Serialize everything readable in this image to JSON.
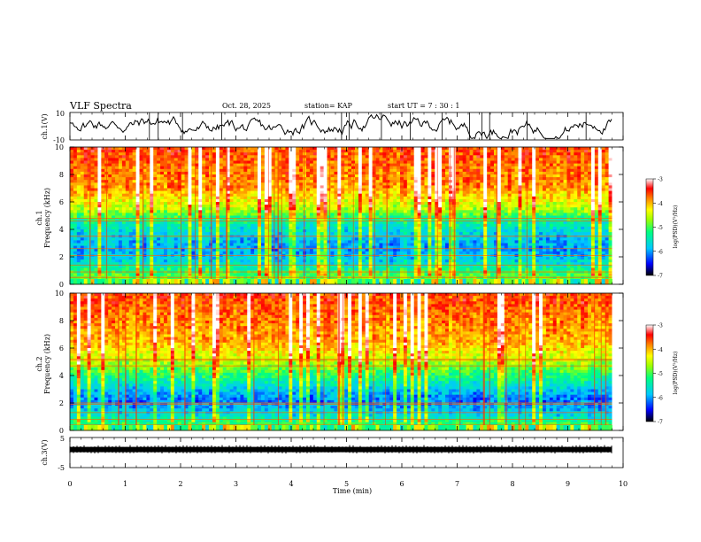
{
  "header": {
    "title": "VLF Spectra",
    "date": "Oct. 28, 2025",
    "station": "station= KAP",
    "start": "start  UT  =   7 : 30 : 1"
  },
  "chart_data": [
    {
      "type": "line",
      "name": "ch1-waveform",
      "ylabel": "ch.1(V)",
      "ylim": [
        -10,
        10
      ],
      "tick_labels": [
        "10",
        "-10"
      ],
      "x_range_min": [
        0,
        9.8
      ]
    },
    {
      "type": "heatmap",
      "name": "ch1-spectrogram",
      "ylabel": "ch.1",
      "ylabel2": "Frequency (kHz)",
      "ylim_khz": [
        0,
        10
      ],
      "y_ticks": [
        "0",
        "2",
        "4",
        "6",
        "8",
        "10"
      ],
      "colorbar": {
        "label": "log(PSD)(V²/Hz)",
        "range": [
          -7,
          -3
        ],
        "ticks": [
          "-3",
          "-4",
          "-5",
          "-6",
          "-7"
        ],
        "colors": [
          "#000000",
          "#0000ff",
          "#00c0ff",
          "#00ff80",
          "#80ff00",
          "#ffff00",
          "#ff8000",
          "#ff0000",
          "#ffffff"
        ]
      },
      "band_profile_khz_to_level": [
        [
          0,
          0.55
        ],
        [
          0.8,
          0.5
        ],
        [
          1.5,
          0.35
        ],
        [
          2.5,
          0.25
        ],
        [
          3.5,
          0.3
        ],
        [
          4.5,
          0.4
        ],
        [
          5.5,
          0.6
        ],
        [
          7,
          0.78
        ],
        [
          10,
          0.85
        ]
      ]
    },
    {
      "type": "heatmap",
      "name": "ch2-spectrogram",
      "ylabel": "ch.2",
      "ylabel2": "Frequency (kHz)",
      "ylim_khz": [
        0,
        10
      ],
      "y_ticks": [
        "0",
        "2",
        "4",
        "6",
        "8",
        "10"
      ],
      "colorbar": {
        "label": "log(PSD)(V²/Hz)",
        "range": [
          -7,
          -3
        ],
        "ticks": [
          "-3",
          "-4",
          "-5",
          "-6",
          "-7"
        ]
      },
      "band_profile_khz_to_level": [
        [
          0,
          0.6
        ],
        [
          1,
          0.35
        ],
        [
          2.2,
          0.2
        ],
        [
          3,
          0.3
        ],
        [
          4,
          0.45
        ],
        [
          5,
          0.6
        ],
        [
          6.5,
          0.75
        ],
        [
          10,
          0.85
        ]
      ]
    },
    {
      "type": "line",
      "name": "ch3-waveform",
      "ylabel": "ch.3(V)",
      "ylim": [
        -5,
        5
      ],
      "tick_labels": [
        "5",
        "-5"
      ],
      "x_range_min": [
        0,
        9.8
      ]
    }
  ],
  "xaxis": {
    "label": "Time (min)",
    "range": [
      0,
      10
    ],
    "ticks": [
      "0",
      "1",
      "2",
      "3",
      "4",
      "5",
      "6",
      "7",
      "8",
      "9",
      "10"
    ]
  }
}
